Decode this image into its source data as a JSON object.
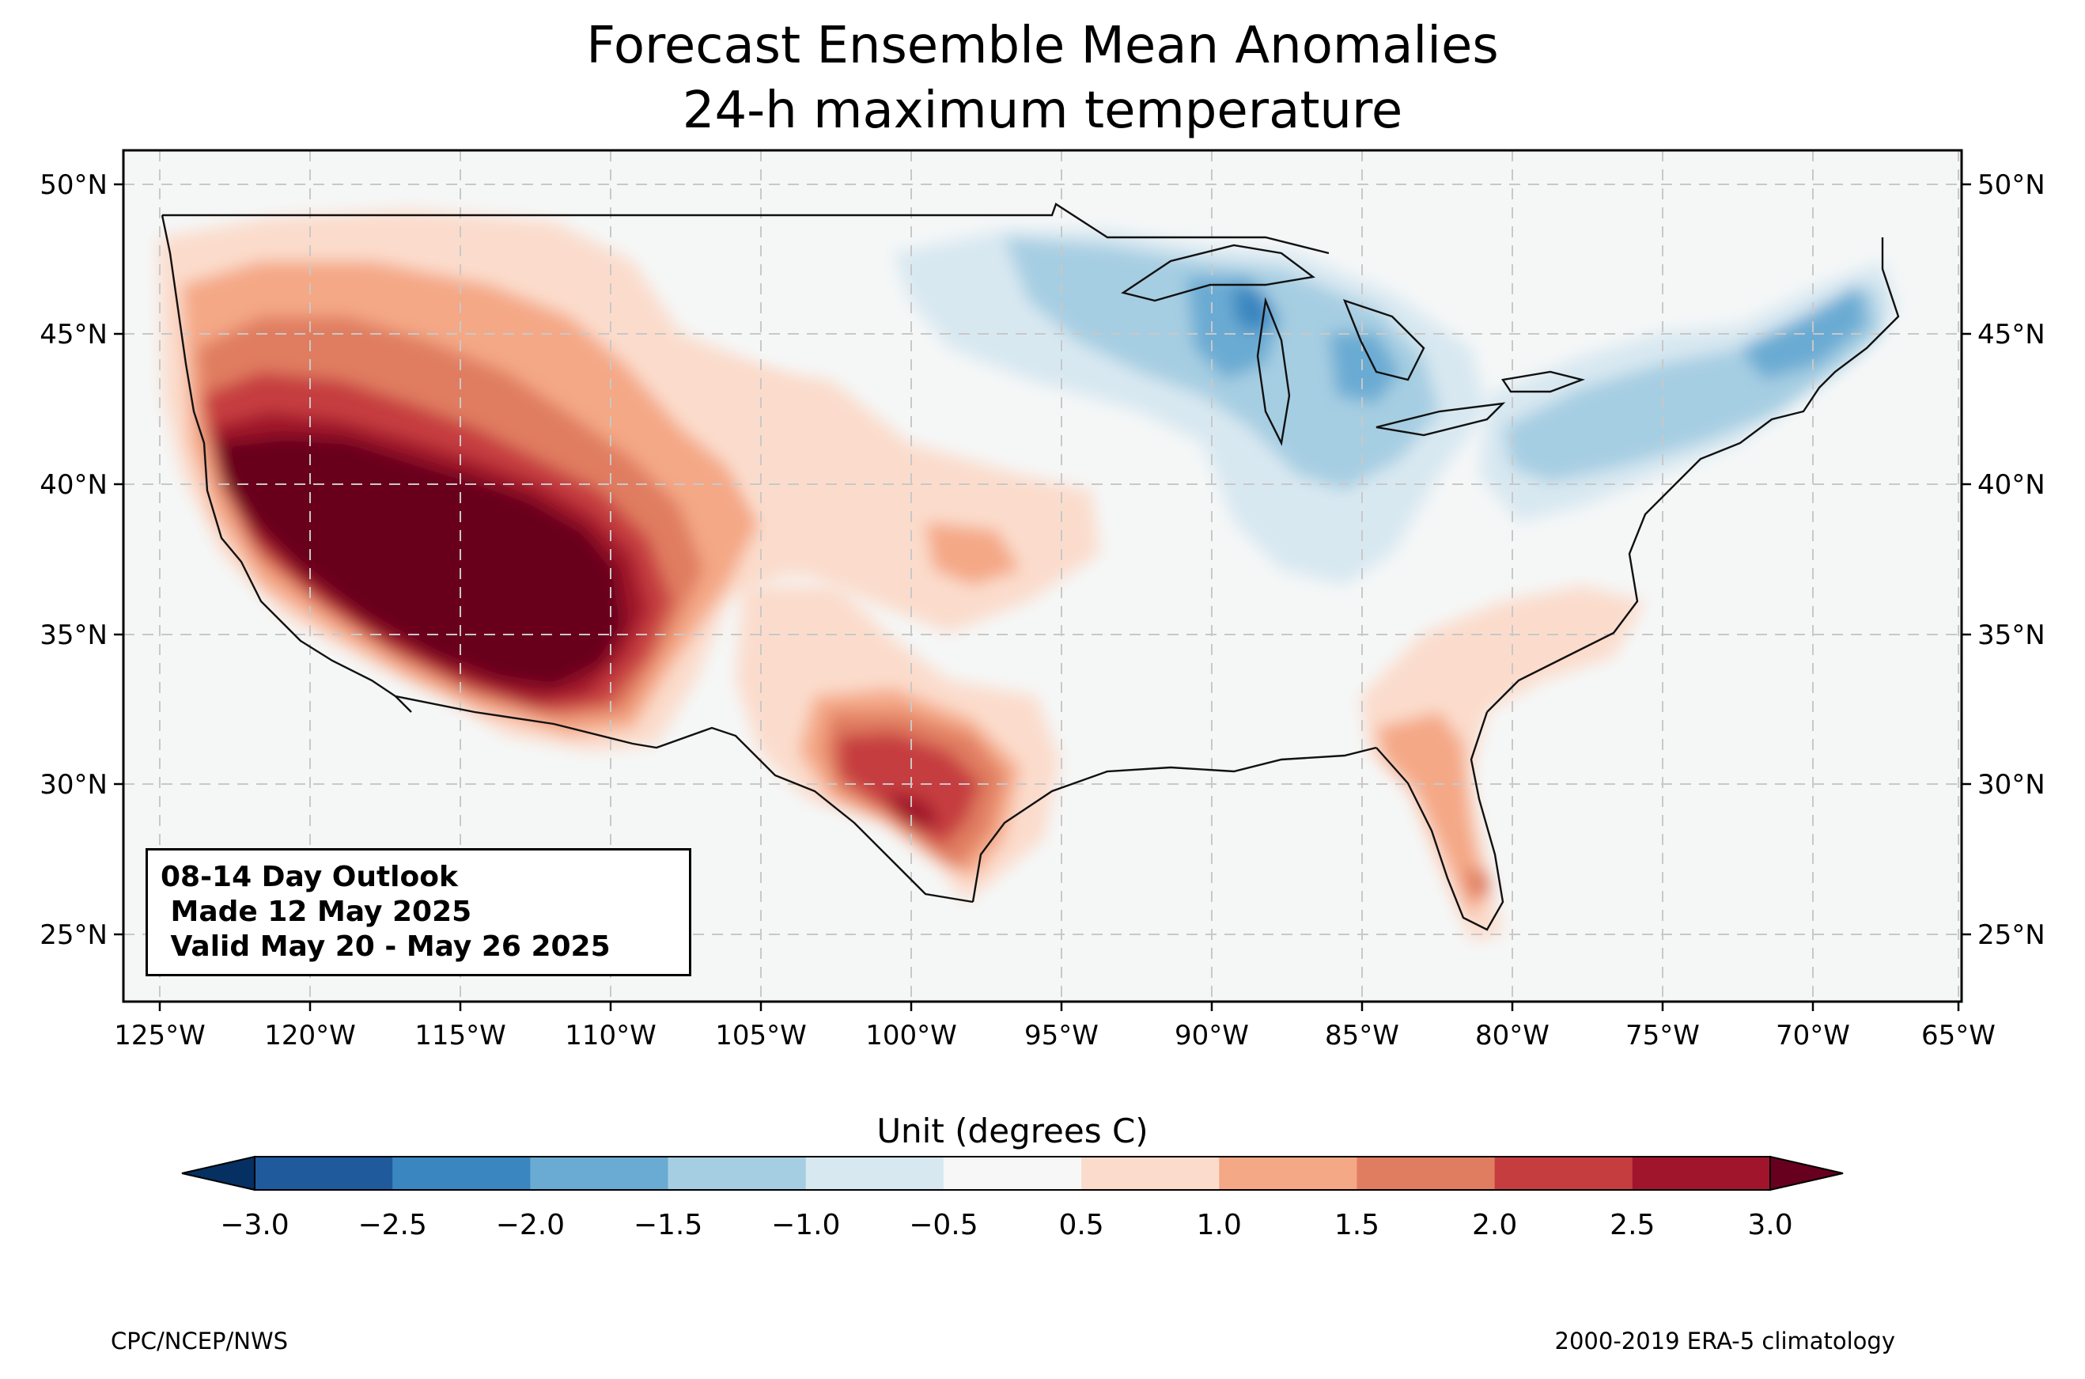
{
  "title": {
    "line1": "Forecast Ensemble Mean Anomalies",
    "line2": "24-h maximum temperature"
  },
  "map": {
    "projection": "PlateCarree",
    "lon_range": [
      -126.2,
      -64.9
    ],
    "lat_range": [
      22.8,
      51.3
    ],
    "lon_ticks": [
      "125°W",
      "120°W",
      "115°W",
      "110°W",
      "105°W",
      "100°W",
      "95°W",
      "90°W",
      "85°W",
      "80°W",
      "75°W",
      "70°W",
      "65°W"
    ],
    "lat_ticks": [
      "50°N",
      "45°N",
      "40°N",
      "35°N",
      "30°N",
      "25°N"
    ],
    "gridlines": true,
    "anomaly_regions": [
      {
        "area": "Southwest / California–Arizona desert",
        "anomaly_c": ">3.0"
      },
      {
        "area": "Great Basin / Utah / Colorado",
        "anomaly_c": "2.0 to 3.0"
      },
      {
        "area": "Pacific Northwest / Northern Rockies",
        "anomaly_c": "0.5 to 2.0"
      },
      {
        "area": "South Texas",
        "anomaly_c": "2.0 to 3.0"
      },
      {
        "area": "Central Plains",
        "anomaly_c": "0.5 to 1.5"
      },
      {
        "area": "Florida / Southeast coast",
        "anomaly_c": "0.5 to 2.0"
      },
      {
        "area": "Upper Midwest / Great Lakes",
        "anomaly_c": "-0.5 to -2.5"
      },
      {
        "area": "Northeast / New England",
        "anomaly_c": "-0.5 to -2.0"
      }
    ]
  },
  "outlook_box": {
    "line1": "08-14 Day Outlook",
    "line2": " Made 12 May 2025",
    "line3": " Valid May 20 - May 26 2025"
  },
  "colorbar": {
    "title": "Unit (degrees C)",
    "ticks": [
      "−3.0",
      "−2.5",
      "−2.0",
      "−1.5",
      "−1.0",
      "−0.5",
      "0.5",
      "1.0",
      "1.5",
      "2.0",
      "2.5",
      "3.0"
    ],
    "colors": [
      "#053061",
      "#1f5a9c",
      "#3a86c0",
      "#6aabd3",
      "#a6cee2",
      "#d8e8f1",
      "#f7f7f7",
      "#fbdccc",
      "#f4a886",
      "#e07d60",
      "#c63d40",
      "#a0152b",
      "#67001f"
    ],
    "extend": "both"
  },
  "footer": {
    "left": "CPC/NCEP/NWS",
    "right": "2000-2019 ERA-5 climatology"
  }
}
